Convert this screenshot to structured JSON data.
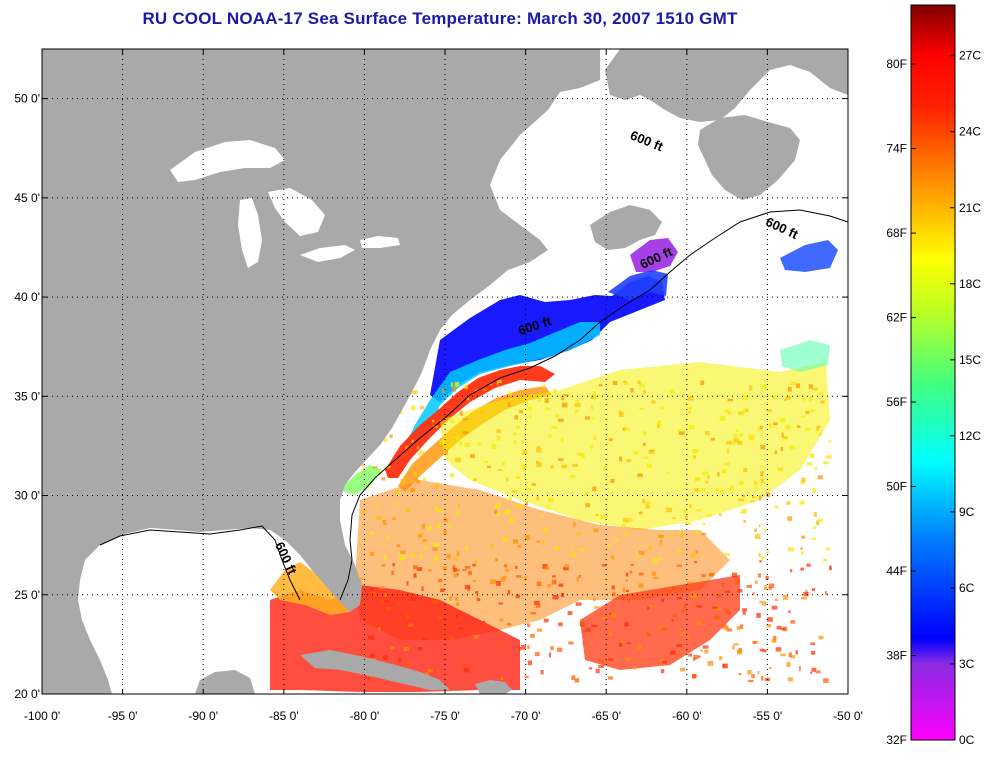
{
  "title": "RU COOL  NOAA-17  Sea Surface Temperature:  March 30, 2007 1510 GMT",
  "map": {
    "lon_labels": [
      "-100 0'",
      "-95 0'",
      "-90 0'",
      "-85 0'",
      "-80 0'",
      "-75 0'",
      "-70 0'",
      "-65 0'",
      "-60 0'",
      "-55 0'",
      "-50 0'"
    ],
    "lon_values": [
      -100,
      -95,
      -90,
      -85,
      -80,
      -75,
      -70,
      -65,
      -60,
      -55,
      -50
    ],
    "lat_labels": [
      "50 0'",
      "45 0'",
      "40 0'",
      "35 0'",
      "30 0'",
      "25 0'",
      "20 0'"
    ],
    "lat_values": [
      50,
      45,
      40,
      35,
      30,
      25,
      20
    ],
    "lon_range": [
      -100,
      -50
    ],
    "lat_range": [
      20,
      52.5
    ],
    "grid": "dotted",
    "contour_label": "600 ft",
    "colors": {
      "land": "#a9a9a9",
      "no_data": "#ffffff",
      "title": "#1a1aa8",
      "coast": "#000000"
    }
  },
  "colorbar": {
    "f_labels": [
      "80F",
      "74F",
      "68F",
      "62F",
      "56F",
      "50F",
      "44F",
      "38F",
      "32F"
    ],
    "f_values": [
      80,
      74,
      68,
      62,
      56,
      50,
      44,
      38,
      32
    ],
    "c_labels": [
      "27C",
      "24C",
      "21C",
      "18C",
      "15C",
      "12C",
      "9C",
      "6C",
      "3C",
      "0C"
    ],
    "c_values": [
      27,
      24,
      21,
      18,
      15,
      12,
      9,
      6,
      3,
      0
    ],
    "range_c": [
      0,
      29
    ],
    "stops": [
      {
        "c": 0,
        "color": "#ff00ff"
      },
      {
        "c": 3,
        "color": "#8a2be2"
      },
      {
        "c": 4,
        "color": "#0000ff"
      },
      {
        "c": 8,
        "color": "#0080ff"
      },
      {
        "c": 11,
        "color": "#00ffff"
      },
      {
        "c": 14,
        "color": "#40ff80"
      },
      {
        "c": 17,
        "color": "#c0ff20"
      },
      {
        "c": 19,
        "color": "#ffff00"
      },
      {
        "c": 22,
        "color": "#ff9000"
      },
      {
        "c": 25,
        "color": "#ff2000"
      },
      {
        "c": 27,
        "color": "#ff0000"
      },
      {
        "c": 29,
        "color": "#800000"
      }
    ]
  }
}
